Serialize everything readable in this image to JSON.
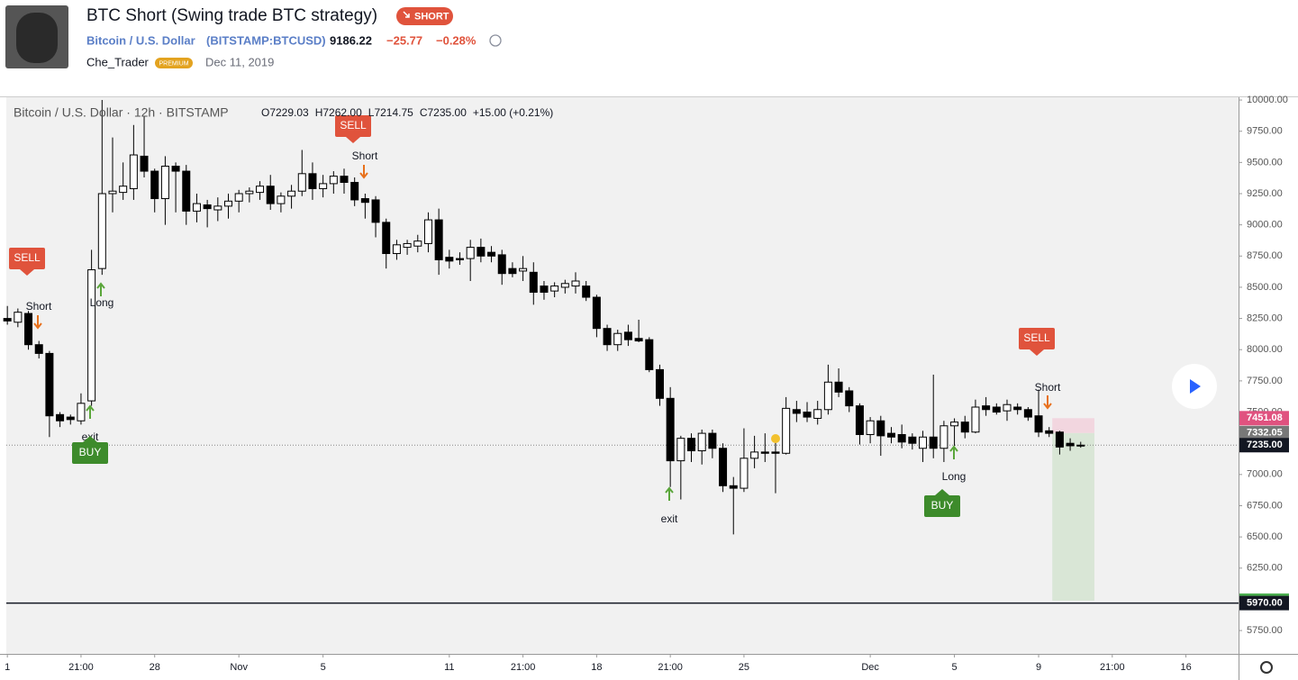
{
  "header": {
    "title": "BTC Short (Swing trade BTC strategy)",
    "badge": "SHORT",
    "symbol_name": "Bitcoin / U.S. Dollar",
    "symbol_code": "(BITSTAMP:BTCUSD)",
    "price": "9186.22",
    "change": "−25.77",
    "change_pct": "−0.28%",
    "author": "Che_Trader",
    "author_badge": "PREMIUM",
    "date": "Dec 11, 2019"
  },
  "chart_data": {
    "type": "candlestick",
    "legend": "Bitcoin / U.S. Dollar · 12h · BITSTAMP",
    "legend_ohlc": [
      "O7229.03",
      "H7262.00",
      "L7214.75",
      "C7235.00",
      "+15.00 (+0.21%)"
    ],
    "open": [
      8250,
      8220,
      8290,
      8040,
      7970,
      7480,
      7460,
      7430,
      7590,
      8650,
      9250,
      9260,
      9290,
      9550,
      9430,
      9210,
      9470,
      9430,
      9110,
      9160,
      9120,
      9150,
      9190,
      9250,
      9260,
      9310,
      9170,
      9230,
      9270,
      9410,
      9290,
      9330,
      9390,
      9340,
      9210,
      9200,
      9020,
      8770,
      8820,
      8830,
      8850,
      9040,
      8740,
      8730,
      8730,
      8820,
      8780,
      8760,
      8650,
      8630,
      8620,
      8510,
      8470,
      8500,
      8510,
      8510,
      8420,
      8170,
      8040,
      8140,
      8090,
      8080,
      7840,
      7610,
      7110,
      7290,
      7190,
      7330,
      7210,
      6910,
      6890,
      7130,
      7180,
      7180,
      7170,
      7520,
      7500,
      7450,
      7520,
      7740,
      7670,
      7550,
      7320,
      7430,
      7330,
      7320,
      7300,
      7210,
      7300,
      7210,
      7390,
      7420,
      7340,
      7550,
      7540,
      7510,
      7540,
      7520,
      7470,
      7350,
      7340,
      7250,
      7229.03
    ],
    "high": [
      8350,
      8330,
      8310,
      8070,
      7990,
      7500,
      7480,
      7650,
      8800,
      10000,
      9700,
      9500,
      9800,
      9870,
      9450,
      9550,
      9500,
      9480,
      9250,
      9200,
      9220,
      9250,
      9280,
      9300,
      9350,
      9400,
      9260,
      9320,
      9600,
      9500,
      9400,
      9430,
      9450,
      9380,
      9250,
      9230,
      9050,
      8880,
      8880,
      8920,
      9100,
      9130,
      8800,
      8780,
      8880,
      8890,
      8830,
      8800,
      8700,
      8750,
      8700,
      8550,
      8540,
      8560,
      8620,
      8550,
      8440,
      8200,
      8160,
      8200,
      8240,
      8100,
      7880,
      7700,
      7310,
      7330,
      7360,
      7360,
      7250,
      6980,
      7370,
      7310,
      7330,
      7300,
      7620,
      7590,
      7580,
      7590,
      7880,
      7850,
      7700,
      7570,
      7460,
      7470,
      7380,
      7400,
      7330,
      7350,
      7800,
      7430,
      7450,
      7470,
      7600,
      7620,
      7570,
      7600,
      7570,
      7540,
      7680,
      7380,
      7350,
      7290,
      7262
    ],
    "low": [
      8200,
      8180,
      8000,
      7930,
      7300,
      7380,
      7400,
      7400,
      7550,
      8600,
      9100,
      9200,
      9200,
      9380,
      9100,
      9000,
      9100,
      9000,
      9020,
      8980,
      9030,
      9050,
      9100,
      9180,
      9200,
      9120,
      9100,
      9130,
      9230,
      9200,
      9220,
      9250,
      9250,
      9150,
      9050,
      8900,
      8650,
      8720,
      8760,
      8780,
      8780,
      8600,
      8650,
      8680,
      8550,
      8700,
      8700,
      8520,
      8580,
      8550,
      8360,
      8400,
      8420,
      8450,
      8450,
      8390,
      8100,
      7990,
      7990,
      8030,
      8060,
      7820,
      7550,
      6900,
      6800,
      7100,
      7080,
      7130,
      6860,
      6520,
      6860,
      7050,
      7100,
      6850,
      7160,
      7420,
      7420,
      7400,
      7480,
      7620,
      7500,
      7240,
      7250,
      7150,
      7250,
      7210,
      7200,
      7100,
      7130,
      7100,
      7230,
      7290,
      7330,
      7470,
      7480,
      7430,
      7480,
      7430,
      7300,
      7300,
      7160,
      7190,
      7214.75
    ],
    "close": [
      8230,
      8300,
      8040,
      7970,
      7470,
      7430,
      7440,
      7570,
      8640,
      9250,
      9270,
      9310,
      9560,
      9430,
      9210,
      9470,
      9430,
      9110,
      9170,
      9130,
      9150,
      9190,
      9250,
      9270,
      9310,
      9170,
      9230,
      9270,
      9410,
      9290,
      9330,
      9390,
      9340,
      9200,
      9180,
      9020,
      8770,
      8840,
      8850,
      8870,
      9040,
      8720,
      8710,
      8720,
      8820,
      8750,
      8750,
      8610,
      8610,
      8650,
      8460,
      8460,
      8510,
      8530,
      8550,
      8420,
      8170,
      8040,
      8130,
      8080,
      8070,
      7840,
      7610,
      7110,
      7290,
      7190,
      7330,
      7210,
      6910,
      6890,
      7130,
      7180,
      7170,
      7170,
      7530,
      7490,
      7460,
      7520,
      7740,
      7660,
      7550,
      7320,
      7430,
      7310,
      7300,
      7260,
      7250,
      7300,
      7210,
      7390,
      7420,
      7340,
      7540,
      7520,
      7500,
      7560,
      7520,
      7460,
      7340,
      7330,
      7220,
      7230,
      7235
    ],
    "xlim": [
      -0.1,
      117
    ],
    "xticks": [
      {
        "value": 0,
        "label": "1"
      },
      {
        "value": 7,
        "label": "21:00"
      },
      {
        "value": 14,
        "label": "28"
      },
      {
        "value": 22,
        "label": "Nov"
      },
      {
        "value": 30,
        "label": "5"
      },
      {
        "value": 42,
        "label": "11"
      },
      {
        "value": 49,
        "label": "21:00"
      },
      {
        "value": 56,
        "label": "18"
      },
      {
        "value": 63,
        "label": "21:00"
      },
      {
        "value": 70,
        "label": "25"
      },
      {
        "value": 82,
        "label": "Dec"
      },
      {
        "value": 90,
        "label": "5"
      },
      {
        "value": 98,
        "label": "9"
      },
      {
        "value": 105,
        "label": "21:00"
      },
      {
        "value": 112,
        "label": "16"
      }
    ],
    "ylim": [
      5563,
      10022
    ],
    "yticks": [
      {
        "value": 10000,
        "label": "10000.00"
      },
      {
        "value": 9750,
        "label": "9750.00"
      },
      {
        "value": 9500,
        "label": "9500.00"
      },
      {
        "value": 9250,
        "label": "9250.00"
      },
      {
        "value": 9000,
        "label": "9000.00"
      },
      {
        "value": 8750,
        "label": "8750.00"
      },
      {
        "value": 8500,
        "label": "8500.00"
      },
      {
        "value": 8250,
        "label": "8250.00"
      },
      {
        "value": 8000,
        "label": "8000.00"
      },
      {
        "value": 7750,
        "label": "7750.00"
      },
      {
        "value": 7500,
        "label": "7500.00"
      },
      {
        "value": 7250,
        "label": "7250.00"
      },
      {
        "value": 7000,
        "label": "7000.00"
      },
      {
        "value": 6750,
        "label": "6750.00"
      },
      {
        "value": 6500,
        "label": "6500.00"
      },
      {
        "value": 6250,
        "label": "6250.00"
      },
      {
        "value": 6000,
        "label": "6000.00"
      },
      {
        "value": 5750,
        "label": "5750.00"
      }
    ],
    "price_lines": [
      {
        "value": 7451.08,
        "color": "#e0527f"
      },
      {
        "value": 7332.05,
        "color": "#787878"
      },
      {
        "value": {
          "value": 7235,
          "label": "7235.00"
        },
        "color": "#131722"
      },
      {
        "value": 5989.35,
        "color": "#4caf50"
      },
      {
        "value": {
          "value": 5970,
          "label": "5970.00"
        },
        "color": "#131722"
      }
    ],
    "annotations": [
      "SELL",
      "Short",
      "Long",
      "exit",
      "BUY",
      "SELL",
      "Short",
      "exit",
      "BUY",
      "Long",
      "SELL",
      "Short"
    ]
  }
}
